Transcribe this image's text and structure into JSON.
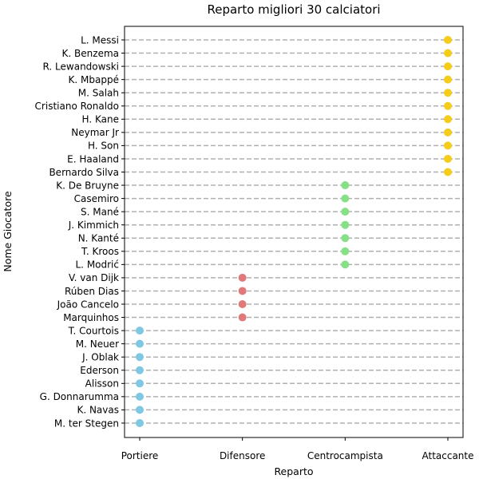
{
  "chart_data": {
    "type": "scatter",
    "title": "Reparto migliori 30 calciatori",
    "xlabel": "Reparto",
    "ylabel": "Nome Giocatore",
    "x_categories": [
      "Portiere",
      "Difensore",
      "Centrocampista",
      "Attaccante"
    ],
    "grid": "horizontal dashed",
    "points": [
      {
        "player": "L. Messi",
        "role": "Attaccante"
      },
      {
        "player": "K. Benzema",
        "role": "Attaccante"
      },
      {
        "player": "R. Lewandowski",
        "role": "Attaccante"
      },
      {
        "player": "K. Mbappé",
        "role": "Attaccante"
      },
      {
        "player": "M. Salah",
        "role": "Attaccante"
      },
      {
        "player": "Cristiano Ronaldo",
        "role": "Attaccante"
      },
      {
        "player": "H. Kane",
        "role": "Attaccante"
      },
      {
        "player": "Neymar Jr",
        "role": "Attaccante"
      },
      {
        "player": "H. Son",
        "role": "Attaccante"
      },
      {
        "player": "E. Haaland",
        "role": "Attaccante"
      },
      {
        "player": "Bernardo Silva",
        "role": "Attaccante"
      },
      {
        "player": "K. De Bruyne",
        "role": "Centrocampista"
      },
      {
        "player": "Casemiro",
        "role": "Centrocampista"
      },
      {
        "player": "S. Mané",
        "role": "Centrocampista"
      },
      {
        "player": "J. Kimmich",
        "role": "Centrocampista"
      },
      {
        "player": "N. Kanté",
        "role": "Centrocampista"
      },
      {
        "player": "T. Kroos",
        "role": "Centrocampista"
      },
      {
        "player": "L. Modrić",
        "role": "Centrocampista"
      },
      {
        "player": "V. van Dijk",
        "role": "Difensore"
      },
      {
        "player": "Rúben Dias",
        "role": "Difensore"
      },
      {
        "player": "João Cancelo",
        "role": "Difensore"
      },
      {
        "player": "Marquinhos",
        "role": "Difensore"
      },
      {
        "player": "T. Courtois",
        "role": "Portiere"
      },
      {
        "player": "M. Neuer",
        "role": "Portiere"
      },
      {
        "player": "J. Oblak",
        "role": "Portiere"
      },
      {
        "player": "Ederson",
        "role": "Portiere"
      },
      {
        "player": "Alisson",
        "role": "Portiere"
      },
      {
        "player": "G. Donnarumma",
        "role": "Portiere"
      },
      {
        "player": "K. Navas",
        "role": "Portiere"
      },
      {
        "player": "M. ter Stegen",
        "role": "Portiere"
      }
    ],
    "role_colors": {
      "Portiere": "#7ec8e3",
      "Difensore": "#e07a7a",
      "Centrocampista": "#86e086",
      "Attaccante": "#f5cc1a"
    }
  }
}
